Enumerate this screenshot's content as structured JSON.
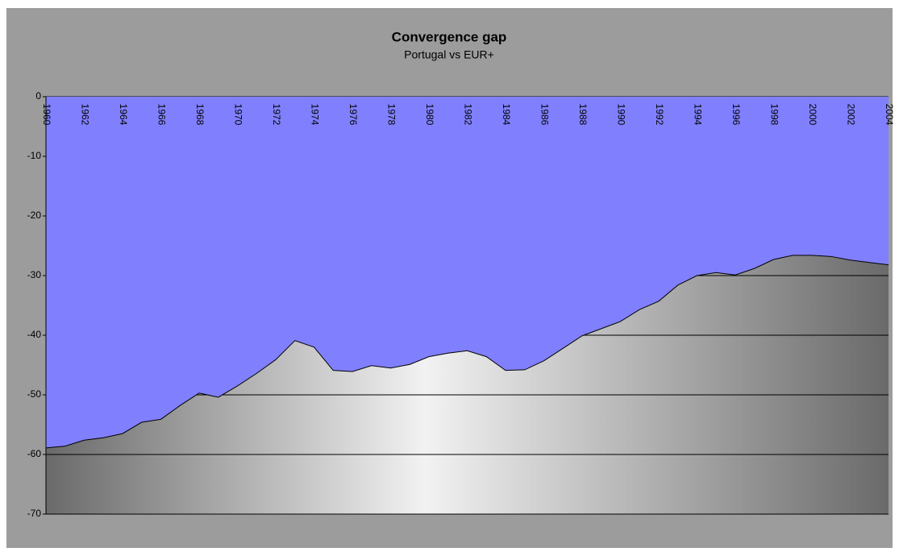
{
  "chart_data": {
    "type": "area",
    "title": "Convergence gap",
    "subtitle": "Portugal vs EUR+",
    "categories": [
      "1960",
      null,
      "1962",
      null,
      "1964",
      null,
      "1966",
      null,
      "1968",
      null,
      "1970",
      null,
      "1972",
      null,
      "1974",
      null,
      "1976",
      null,
      "1978",
      null,
      "1980",
      null,
      "1982",
      null,
      "1984",
      null,
      "1986",
      null,
      "1988",
      null,
      "1990",
      null,
      "1992",
      null,
      "1994",
      null,
      "1996",
      null,
      "1998",
      null,
      "2000",
      null,
      "2002",
      null,
      "2004"
    ],
    "values": [
      -58.9,
      -58.6,
      -57.6,
      -57.2,
      -56.5,
      -54.6,
      -54.1,
      -51.8,
      -49.7,
      -50.4,
      -48.5,
      -46.4,
      -44.1,
      -40.9,
      -42.0,
      -45.9,
      -46.1,
      -45.1,
      -45.5,
      -44.9,
      -43.6,
      -43.0,
      -42.6,
      -43.6,
      -45.9,
      -45.8,
      -44.3,
      -42.2,
      -40.1,
      -38.9,
      -37.7,
      -35.7,
      -34.3,
      -31.6,
      -30.0,
      -29.5,
      -29.9,
      -28.8,
      -27.3,
      -26.6,
      -26.6,
      -26.8,
      -27.4,
      -27.8,
      -28.2
    ],
    "color": "#8080ff",
    "ylim": [
      -70,
      0
    ],
    "yticks": [
      0,
      -10,
      -20,
      -30,
      -40,
      -50,
      -60,
      -70
    ],
    "grid": true
  }
}
